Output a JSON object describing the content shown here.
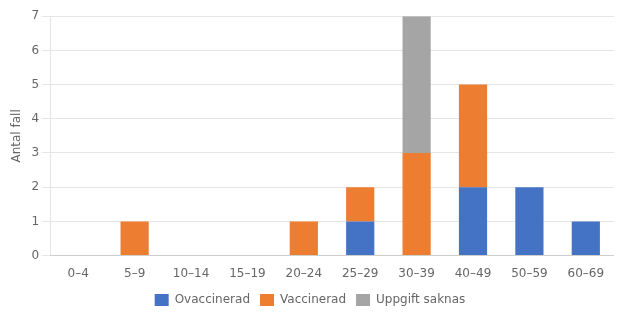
{
  "chart_data": {
    "type": "bar",
    "stacked": true,
    "categories": [
      "0–4",
      "5–9",
      "10–14",
      "15–19",
      "20–24",
      "25–29",
      "30–39",
      "40–49",
      "50–59",
      "60–69"
    ],
    "series": [
      {
        "name": "Ovaccinerad",
        "color": "#4472C4",
        "values": [
          0,
          0,
          0,
          0,
          0,
          1,
          0,
          2,
          2,
          1
        ]
      },
      {
        "name": "Vaccinerad",
        "color": "#ED7D31",
        "values": [
          0,
          1,
          0,
          0,
          1,
          1,
          3,
          3,
          0,
          0
        ]
      },
      {
        "name": "Uppgift saknas",
        "color": "#A5A5A5",
        "values": [
          0,
          0,
          0,
          0,
          0,
          0,
          4,
          0,
          0,
          0
        ]
      }
    ],
    "ylabel": "Antal fall",
    "ylim": [
      0,
      7
    ],
    "yticks": [
      0,
      1,
      2,
      3,
      4,
      5,
      6,
      7
    ],
    "grid": true,
    "legend": "bottom"
  }
}
